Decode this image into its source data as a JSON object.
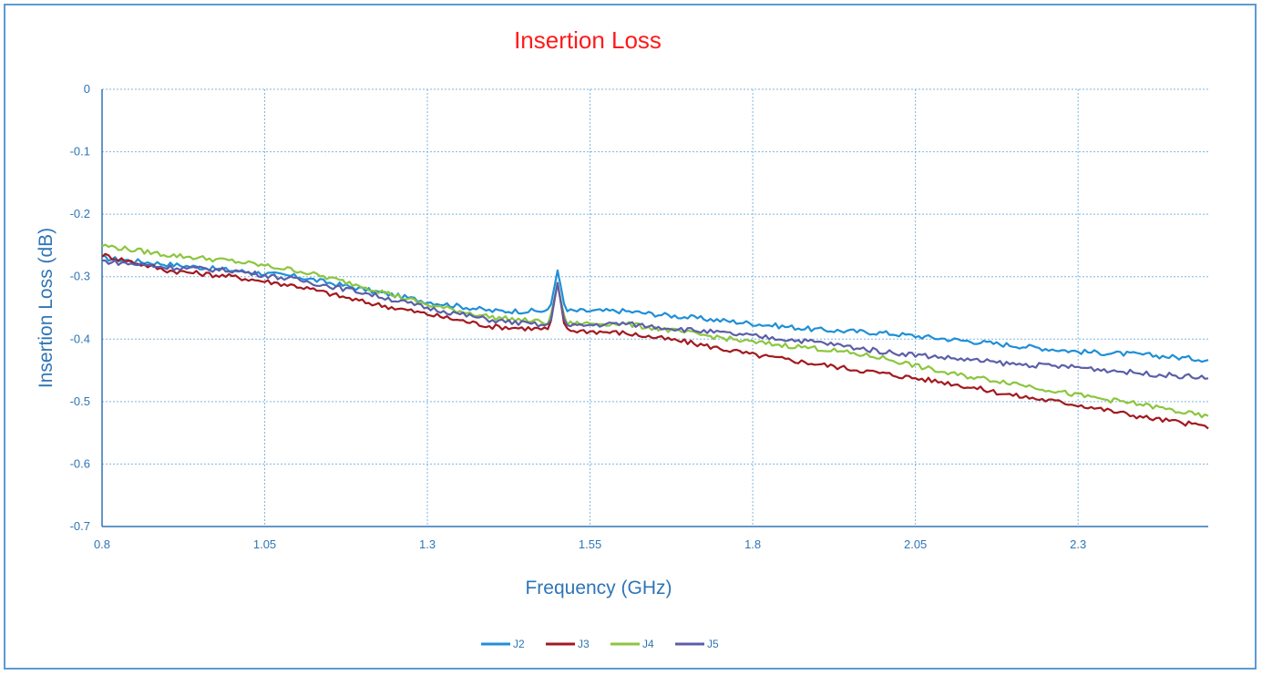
{
  "chart_data": {
    "type": "line",
    "title": "Insertion Loss",
    "xlabel": "Frequency (GHz)",
    "ylabel": "Insertion Loss (dB)",
    "xlim": [
      0.8,
      2.5
    ],
    "ylim": [
      -0.7,
      0
    ],
    "x_ticks": [
      "0.8",
      "1.05",
      "1.3",
      "1.55",
      "1.8",
      "2.05",
      "2.3"
    ],
    "y_ticks": [
      "0",
      "-0.1",
      "-0.2",
      "-0.3",
      "-0.4",
      "-0.5",
      "-0.6",
      "-0.7"
    ],
    "grid": true,
    "legend_position": "bottom",
    "colors": {
      "J2": "#1f8fd8",
      "J3": "#a3191f",
      "J4": "#8cc63e",
      "J5": "#5b5fa8",
      "axis": "#2e75b6",
      "grid": "#7fb5e0",
      "title": "#ff1a1a"
    },
    "spike": {
      "x": 1.5,
      "note_values": {
        "J2": -0.29,
        "J3": -0.31,
        "J4": -0.31,
        "J5": -0.31
      }
    },
    "series": [
      {
        "name": "J2",
        "x": [
          0.8,
          0.9,
          1.0,
          1.1,
          1.2,
          1.3,
          1.4,
          1.5,
          1.6,
          1.7,
          1.8,
          1.9,
          2.0,
          2.1,
          2.2,
          2.3,
          2.4,
          2.5
        ],
        "y": [
          -0.27,
          -0.28,
          -0.29,
          -0.3,
          -0.32,
          -0.34,
          -0.355,
          -0.355,
          -0.355,
          -0.365,
          -0.375,
          -0.385,
          -0.39,
          -0.4,
          -0.41,
          -0.42,
          -0.425,
          -0.433
        ]
      },
      {
        "name": "J3",
        "x": [
          0.8,
          0.9,
          1.0,
          1.1,
          1.2,
          1.3,
          1.4,
          1.5,
          1.6,
          1.7,
          1.8,
          1.9,
          2.0,
          2.1,
          2.2,
          2.3,
          2.4,
          2.5
        ],
        "y": [
          -0.265,
          -0.29,
          -0.3,
          -0.315,
          -0.34,
          -0.36,
          -0.38,
          -0.385,
          -0.39,
          -0.405,
          -0.425,
          -0.44,
          -0.455,
          -0.47,
          -0.49,
          -0.505,
          -0.525,
          -0.54
        ]
      },
      {
        "name": "J4",
        "x": [
          0.8,
          0.9,
          1.0,
          1.1,
          1.2,
          1.3,
          1.4,
          1.5,
          1.6,
          1.7,
          1.8,
          1.9,
          2.0,
          2.1,
          2.2,
          2.3,
          2.4,
          2.5
        ],
        "y": [
          -0.25,
          -0.265,
          -0.275,
          -0.29,
          -0.315,
          -0.345,
          -0.365,
          -0.375,
          -0.375,
          -0.39,
          -0.405,
          -0.415,
          -0.43,
          -0.455,
          -0.47,
          -0.49,
          -0.505,
          -0.525
        ]
      },
      {
        "name": "J5",
        "x": [
          0.8,
          0.9,
          1.0,
          1.1,
          1.2,
          1.3,
          1.4,
          1.5,
          1.6,
          1.7,
          1.8,
          1.9,
          2.0,
          2.1,
          2.2,
          2.3,
          2.4,
          2.5
        ],
        "y": [
          -0.275,
          -0.285,
          -0.29,
          -0.305,
          -0.325,
          -0.35,
          -0.37,
          -0.38,
          -0.375,
          -0.385,
          -0.395,
          -0.405,
          -0.42,
          -0.43,
          -0.44,
          -0.445,
          -0.455,
          -0.462
        ]
      }
    ]
  }
}
